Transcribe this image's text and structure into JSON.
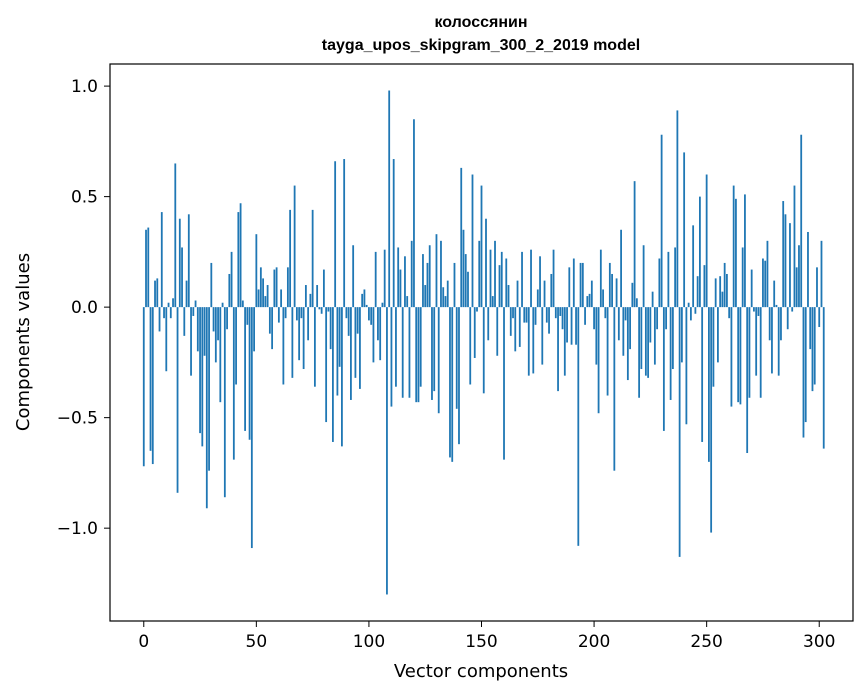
{
  "chart_data": {
    "type": "bar",
    "title": "колоссянин",
    "subtitle": "tayga_upos_skipgram_300_2_2019 model",
    "xlabel": "Vector components",
    "ylabel": "Components values",
    "xlim": [
      -15,
      315
    ],
    "ylim": [
      -1.42,
      1.1
    ],
    "xticks": [
      0,
      50,
      100,
      150,
      200,
      250,
      300
    ],
    "xtick_labels": [
      "0",
      "50",
      "100",
      "150",
      "200",
      "250",
      "300"
    ],
    "yticks": [
      -1.0,
      -0.5,
      0.0,
      0.5,
      1.0
    ],
    "ytick_labels": [
      "−1.0",
      "−0.5",
      "0.0",
      "0.5",
      "1.0"
    ],
    "bar_color": "#1f77b4",
    "grid": false,
    "values": [
      -0.72,
      0.35,
      0.36,
      -0.65,
      -0.71,
      0.12,
      0.13,
      -0.11,
      0.43,
      -0.05,
      -0.29,
      0.02,
      -0.05,
      0.04,
      0.65,
      -0.84,
      0.4,
      0.27,
      -0.13,
      0.12,
      0.42,
      -0.31,
      -0.04,
      0.03,
      -0.2,
      -0.57,
      -0.63,
      -0.22,
      -0.91,
      -0.74,
      0.2,
      -0.11,
      -0.25,
      -0.15,
      -0.43,
      0.02,
      -0.86,
      -0.1,
      0.15,
      0.25,
      -0.69,
      -0.35,
      0.43,
      0.47,
      0.03,
      -0.56,
      -0.08,
      -0.6,
      -1.09,
      -0.2,
      0.33,
      0.08,
      0.18,
      0.13,
      0.05,
      0.1,
      -0.12,
      -0.19,
      0.17,
      0.18,
      -0.07,
      0.08,
      -0.35,
      -0.05,
      0.18,
      0.44,
      -0.32,
      0.55,
      -0.06,
      -0.24,
      -0.05,
      -0.28,
      0.1,
      -0.15,
      0.06,
      0.44,
      -0.36,
      0.1,
      -0.01,
      -0.03,
      0.17,
      -0.52,
      -0.02,
      -0.19,
      -0.61,
      0.66,
      -0.4,
      -0.27,
      -0.63,
      0.67,
      -0.05,
      -0.13,
      -0.42,
      0.28,
      -0.32,
      -0.12,
      -0.37,
      0.06,
      0.08,
      0.01,
      -0.06,
      -0.08,
      -0.25,
      0.25,
      -0.15,
      -0.24,
      0.02,
      0.26,
      -1.3,
      0.98,
      -0.45,
      0.67,
      -0.36,
      0.27,
      0.17,
      -0.41,
      0.23,
      0.05,
      -0.41,
      0.3,
      0.85,
      -0.43,
      -0.43,
      -0.36,
      0.24,
      0.1,
      0.2,
      0.28,
      -0.42,
      -0.38,
      0.33,
      -0.48,
      0.3,
      0.09,
      0.05,
      0.12,
      -0.68,
      -0.7,
      0.2,
      -0.46,
      -0.62,
      0.63,
      0.35,
      0.24,
      0.16,
      -0.35,
      0.6,
      -0.23,
      -0.02,
      0.3,
      0.55,
      -0.39,
      0.4,
      -0.15,
      0.26,
      0.05,
      0.3,
      -0.22,
      0.19,
      0.25,
      -0.69,
      0.22,
      0.1,
      -0.13,
      -0.05,
      -0.2,
      0.12,
      -0.18,
      0.25,
      -0.07,
      -0.07,
      -0.31,
      0.26,
      -0.3,
      -0.08,
      0.08,
      0.23,
      -0.26,
      0.12,
      -0.07,
      -0.12,
      0.15,
      0.26,
      -0.05,
      -0.38,
      -0.04,
      -0.1,
      -0.31,
      -0.16,
      0.18,
      -0.17,
      0.22,
      -0.17,
      -1.08,
      0.2,
      0.2,
      -0.08,
      0.05,
      0.06,
      0.12,
      -0.1,
      -0.26,
      -0.48,
      0.26,
      0.08,
      -0.05,
      -0.4,
      0.2,
      0.15,
      -0.74,
      0.13,
      -0.15,
      0.35,
      -0.22,
      -0.06,
      -0.33,
      -0.19,
      0.11,
      0.57,
      0.04,
      -0.41,
      -0.28,
      0.28,
      -0.31,
      -0.32,
      -0.16,
      0.07,
      -0.26,
      -0.1,
      0.22,
      0.78,
      -0.56,
      -0.1,
      0.25,
      -0.42,
      -0.28,
      0.27,
      0.89,
      -1.13,
      -0.25,
      0.7,
      -0.53,
      0.02,
      -0.06,
      0.37,
      -0.03,
      0.14,
      0.5,
      -0.61,
      0.19,
      0.6,
      -0.7,
      -1.02,
      -0.36,
      0.13,
      -0.25,
      0.14,
      0.07,
      0.2,
      0.15,
      -0.05,
      -0.45,
      0.55,
      0.49,
      -0.43,
      -0.44,
      0.27,
      0.51,
      -0.66,
      -0.41,
      0.17,
      -0.02,
      -0.31,
      -0.04,
      -0.41,
      0.22,
      0.21,
      0.3,
      -0.15,
      -0.3,
      0.12,
      0.01,
      -0.31,
      -0.15,
      0.48,
      0.42,
      -0.1,
      0.38,
      -0.02,
      0.55,
      0.18,
      0.28,
      0.78,
      -0.59,
      -0.52,
      0.34,
      -0.19,
      -0.38,
      -0.35,
      0.18,
      -0.09,
      0.3,
      -0.64
    ]
  }
}
